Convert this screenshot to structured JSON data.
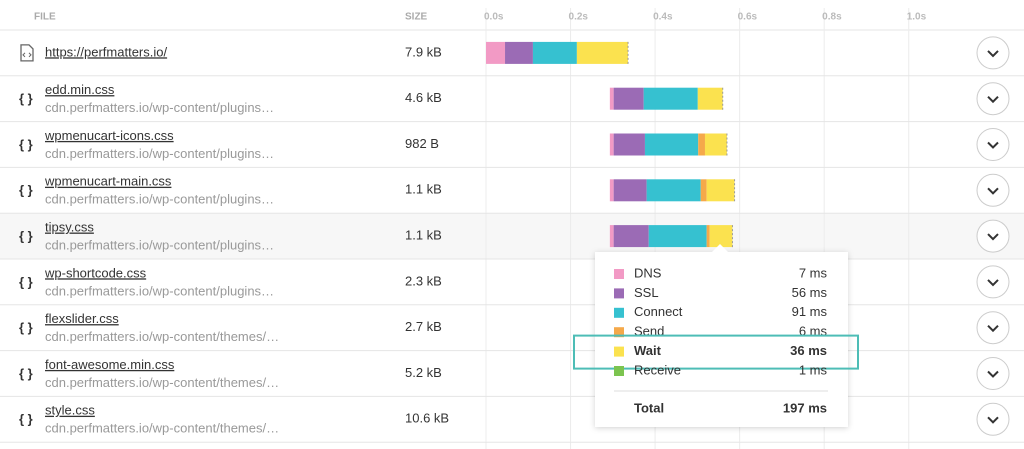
{
  "header": {
    "file": "FILE",
    "size": "SIZE"
  },
  "axis": {
    "xlim": [
      0,
      1.1
    ],
    "ticks": [
      {
        "value": 0,
        "label": "0.0s"
      },
      {
        "value": 0.2,
        "label": "0.2s"
      },
      {
        "value": 0.4,
        "label": "0.4s"
      },
      {
        "value": 0.6,
        "label": "0.6s"
      },
      {
        "value": 0.8,
        "label": "0.8s"
      },
      {
        "value": 1.0,
        "label": "1.0s"
      }
    ]
  },
  "rows": [
    {
      "name": "https://perfmatters.io/",
      "size": "7.9 kB",
      "start": 0,
      "segments": [
        0.045,
        0.066,
        0.104,
        0,
        0.121,
        0
      ]
    },
    {
      "icon": "{ }",
      "name": "edd.min.css",
      "url": "cdn.perfmatters.io/wp-content/plugins…",
      "size": "4.6 kB",
      "start": 0.293,
      "segments": [
        0.009,
        0.071,
        0.128,
        0,
        0.059,
        0
      ]
    },
    {
      "icon": "{ }",
      "name": "wpmenucart-icons.css",
      "url": "cdn.perfmatters.io/wp-content/plugins…",
      "size": "982 B",
      "start": 0.293,
      "segments": [
        0.009,
        0.074,
        0.126,
        0.016,
        0.052,
        0
      ]
    },
    {
      "icon": "{ }",
      "name": "wpmenucart-main.css",
      "url": "cdn.perfmatters.io/wp-content/plugins…",
      "size": "1.1 kB",
      "start": 0.293,
      "segments": [
        0.009,
        0.078,
        0.128,
        0.014,
        0.066,
        0
      ]
    },
    {
      "icon": "{ }",
      "name": "tipsy.css",
      "url": "cdn.perfmatters.io/wp-content/plugins…",
      "size": "1.1 kB",
      "start": 0.293,
      "segments": [
        0.009,
        0.083,
        0.137,
        0.007,
        0.054,
        0
      ]
    },
    {
      "icon": "{ }",
      "name": "wp-shortcode.css",
      "url": "cdn.perfmatters.io/wp-content/plugins…",
      "size": "2.3 kB"
    },
    {
      "icon": "{ }",
      "name": "flexslider.css",
      "url": "cdn.perfmatters.io/wp-content/themes/…",
      "size": "2.7 kB"
    },
    {
      "icon": "{ }",
      "name": "font-awesome.min.css",
      "url": "cdn.perfmatters.io/wp-content/themes/…",
      "size": "5.2 kB"
    },
    {
      "icon": "{ }",
      "name": "style.css",
      "url": "cdn.perfmatters.io/wp-content/themes/…",
      "size": "10.6 kB"
    }
  ],
  "tooltip": {
    "items": [
      {
        "label": "DNS",
        "value": "7 ms",
        "color": "#f29ac5"
      },
      {
        "label": "SSL",
        "value": "56 ms",
        "color": "#9b6bb5"
      },
      {
        "label": "Connect",
        "value": "91 ms",
        "color": "#36c1d0"
      },
      {
        "label": "Send",
        "value": "6 ms",
        "color": "#f5a94a"
      },
      {
        "label": "Wait",
        "value": "36 ms",
        "color": "#fbe24f"
      },
      {
        "label": "Receive",
        "value": "1 ms",
        "color": "#7cc44f"
      }
    ],
    "highlight": 4,
    "total": {
      "label": "Total",
      "value": "197 ms"
    }
  }
}
